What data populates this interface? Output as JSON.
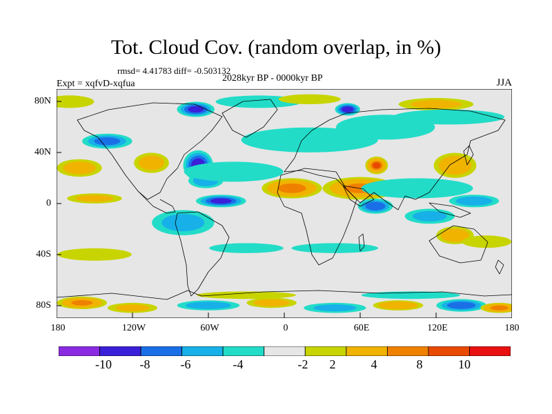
{
  "title": "Tot. Cloud Cov. (random overlap, in %)",
  "stats": "rmsd= 4.41783 diff= -0.503132",
  "period": "2028kyr BP - 0000kyr BP",
  "experiment": "Expt = xqfvD-xqfua",
  "season": "JJA",
  "y_ticks": [
    "80N",
    "40N",
    "0",
    "40S",
    "80S"
  ],
  "x_ticks": [
    "180",
    "120W",
    "60W",
    "0",
    "60E",
    "120E",
    "180"
  ],
  "colorbar": {
    "labels": [
      "-10",
      "-8",
      "-6",
      "-4",
      "-2",
      "2",
      "4",
      "8",
      "10"
    ],
    "colors": [
      "#8a2be2",
      "#3a20d8",
      "#1a6fe6",
      "#17b0e8",
      "#22dcc8",
      "#e6e6e6",
      "#c8d400",
      "#f0b300",
      "#f08000",
      "#e84a00",
      "#e81010"
    ]
  },
  "map_data": {
    "type": "filled-contour map",
    "variable": "Total cloud cover anomaly (%)",
    "projection": "equirectangular",
    "lon_range": [
      -180,
      180
    ],
    "lat_range": [
      -90,
      90
    ],
    "blobs": [
      {
        "lon": 60,
        "lat": 12,
        "rx": 30,
        "ry": 9,
        "v": 9
      },
      {
        "lon": 6,
        "lat": 12,
        "rx": 24,
        "ry": 8,
        "v": 10
      },
      {
        "lon": 73,
        "lat": 30,
        "rx": 9,
        "ry": 7,
        "v": 11
      },
      {
        "lon": 135,
        "lat": 30,
        "rx": 17,
        "ry": 10,
        "v": 7
      },
      {
        "lon": -105,
        "lat": 32,
        "rx": 14,
        "ry": 8,
        "v": 6
      },
      {
        "lon": -162,
        "lat": 28,
        "rx": 18,
        "ry": 7,
        "v": 6
      },
      {
        "lon": -150,
        "lat": 4,
        "rx": 22,
        "ry": 4,
        "v": 5
      },
      {
        "lon": -68,
        "lat": 30,
        "rx": 12,
        "ry": 12,
        "v": -10
      },
      {
        "lon": -50,
        "lat": 2,
        "rx": 20,
        "ry": 5,
        "v": -9
      },
      {
        "lon": -62,
        "lat": 18,
        "rx": 14,
        "ry": 6,
        "v": -6
      },
      {
        "lon": -40,
        "lat": 25,
        "rx": 40,
        "ry": 8,
        "v": -4
      },
      {
        "lon": 72,
        "lat": -2,
        "rx": 14,
        "ry": 6,
        "v": -8
      },
      {
        "lon": 105,
        "lat": 12,
        "rx": 45,
        "ry": 8,
        "v": -4
      },
      {
        "lon": 150,
        "lat": 2,
        "rx": 20,
        "ry": 5,
        "v": -6
      },
      {
        "lon": 20,
        "lat": 50,
        "rx": 55,
        "ry": 10,
        "v": -4
      },
      {
        "lon": 80,
        "lat": 60,
        "rx": 40,
        "ry": 10,
        "v": -3
      },
      {
        "lon": -140,
        "lat": 49,
        "rx": 20,
        "ry": 6,
        "v": -7
      },
      {
        "lon": 115,
        "lat": -10,
        "rx": 20,
        "ry": 6,
        "v": -5
      },
      {
        "lon": -80,
        "lat": -15,
        "rx": 25,
        "ry": 10,
        "v": -5
      },
      {
        "lon": -30,
        "lat": -35,
        "rx": 30,
        "ry": 4,
        "v": -3
      },
      {
        "lon": 40,
        "lat": -35,
        "rx": 35,
        "ry": 4,
        "v": -3
      },
      {
        "lon": 135,
        "lat": -25,
        "rx": 15,
        "ry": 7,
        "v": 7
      },
      {
        "lon": 160,
        "lat": -30,
        "rx": 20,
        "ry": 5,
        "v": 3
      },
      {
        "lon": -150,
        "lat": -40,
        "rx": 30,
        "ry": 5,
        "v": 3
      },
      {
        "lon": -70,
        "lat": 74,
        "rx": 15,
        "ry": 6,
        "v": -9
      },
      {
        "lon": 50,
        "lat": 74,
        "rx": 10,
        "ry": 5,
        "v": -10
      },
      {
        "lon": -20,
        "lat": 80,
        "rx": 35,
        "ry": 5,
        "v": -3
      },
      {
        "lon": 20,
        "lat": 82,
        "rx": 25,
        "ry": 4,
        "v": 4
      },
      {
        "lon": 120,
        "lat": 78,
        "rx": 30,
        "ry": 5,
        "v": 5
      },
      {
        "lon": -170,
        "lat": 80,
        "rx": 20,
        "ry": 5,
        "v": 4
      },
      {
        "lon": 130,
        "lat": 68,
        "rx": 45,
        "ry": 6,
        "v": -3
      },
      {
        "lon": -160,
        "lat": -78,
        "rx": 20,
        "ry": 5,
        "v": 9
      },
      {
        "lon": -120,
        "lat": -82,
        "rx": 20,
        "ry": 4,
        "v": 5
      },
      {
        "lon": -60,
        "lat": -80,
        "rx": 25,
        "ry": 4,
        "v": -6
      },
      {
        "lon": -10,
        "lat": -78,
        "rx": 20,
        "ry": 4,
        "v": 6
      },
      {
        "lon": 40,
        "lat": -82,
        "rx": 25,
        "ry": 4,
        "v": -5
      },
      {
        "lon": 90,
        "lat": -80,
        "rx": 20,
        "ry": 4,
        "v": 8
      },
      {
        "lon": 140,
        "lat": -80,
        "rx": 20,
        "ry": 5,
        "v": -8
      },
      {
        "lon": 170,
        "lat": -82,
        "rx": 15,
        "ry": 4,
        "v": 10
      },
      {
        "lon": -30,
        "lat": -72,
        "rx": 40,
        "ry": 3,
        "v": 4
      },
      {
        "lon": 100,
        "lat": -72,
        "rx": 40,
        "ry": 3,
        "v": -3
      }
    ]
  }
}
